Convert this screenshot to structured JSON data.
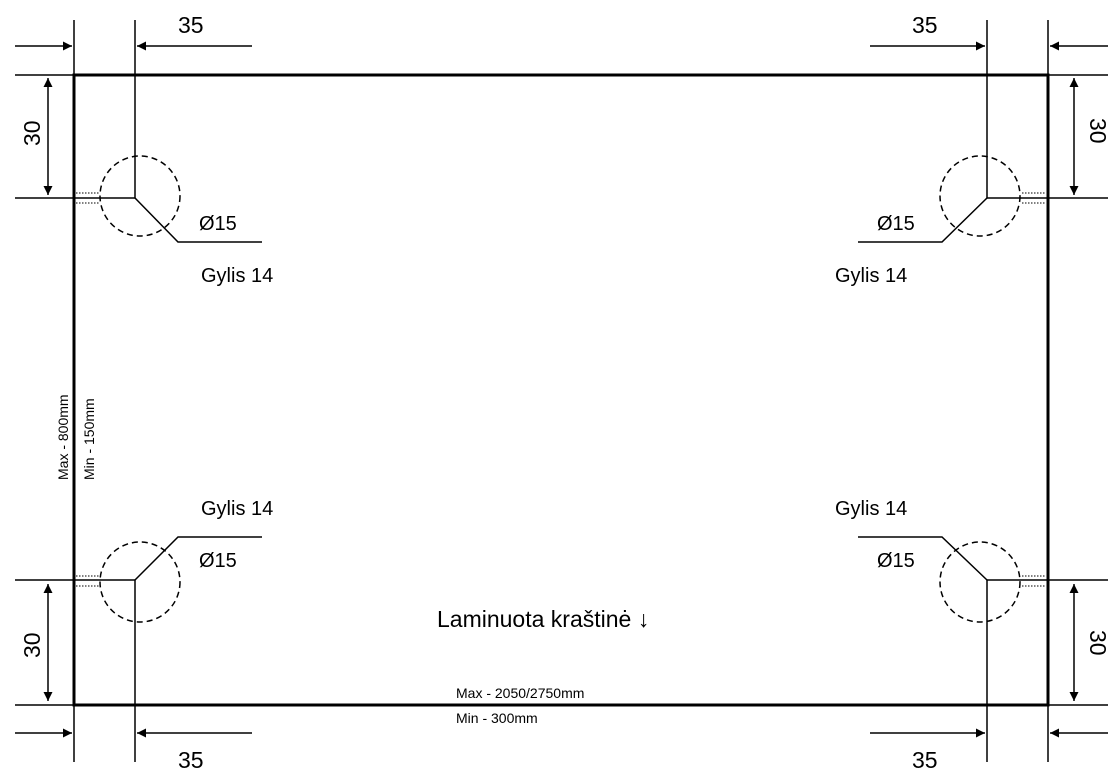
{
  "drawing": {
    "dimensions": {
      "corner_x": "35",
      "corner_y": "30"
    },
    "hole": {
      "diameter": "Ø15",
      "depth": "Gylis 14"
    },
    "edge_note": "Laminuota kraštinė ↓",
    "width_limits": {
      "max": "Max - 2050/2750mm",
      "min": "Min - 300mm"
    },
    "height_limits": {
      "max": "Max - 800mm",
      "min": "Min - 150mm"
    }
  }
}
